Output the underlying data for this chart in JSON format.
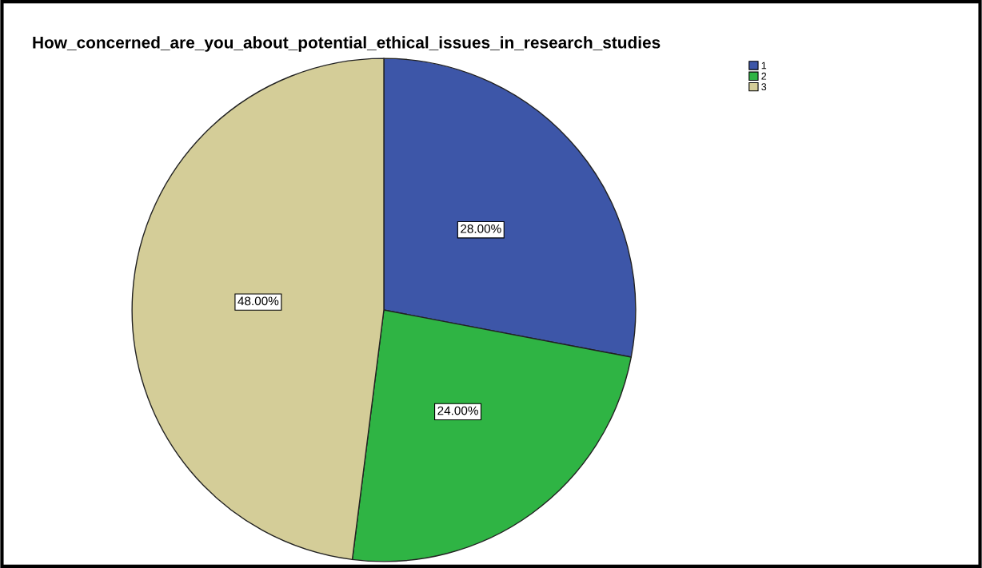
{
  "chart_data": {
    "type": "pie",
    "title": "How_concerned_are_you_about_potential_ethical_issues_in_research_studies",
    "categories": [
      "1",
      "2",
      "3"
    ],
    "values": [
      28,
      24,
      48
    ],
    "colors": [
      "#3d56a8",
      "#2fb444",
      "#d4cd98"
    ],
    "value_labels": [
      "28.00%",
      "24.00%",
      "48.00%"
    ],
    "legend": "top right"
  }
}
